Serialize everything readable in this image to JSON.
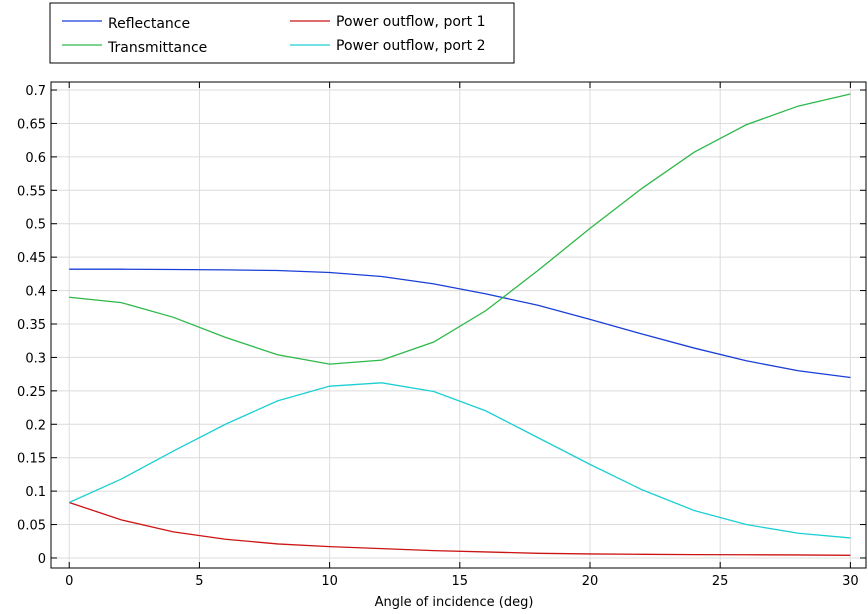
{
  "chart_data": {
    "type": "line",
    "title": "",
    "xlabel": "Angle of incidence (deg)",
    "ylabel": "",
    "xlim": [
      -0.7,
      30.6
    ],
    "ylim": [
      -0.015,
      0.712
    ],
    "xticks": [
      0,
      5,
      10,
      15,
      20,
      25,
      30
    ],
    "yticks": [
      0,
      0.05,
      0.1,
      0.15,
      0.2,
      0.25,
      0.3,
      0.35,
      0.4,
      0.45,
      0.5,
      0.55,
      0.6,
      0.65,
      0.7
    ],
    "grid": true,
    "legend_placement": "top-left, above plot, two columns",
    "x": [
      0,
      2,
      4,
      6,
      8,
      10,
      12,
      14,
      16,
      18,
      20,
      22,
      24,
      26,
      28,
      30
    ],
    "series": [
      {
        "name": "Reflectance",
        "color": "#1a3fd6",
        "values": [
          0.432,
          0.432,
          0.4315,
          0.431,
          0.43,
          0.427,
          0.421,
          0.41,
          0.395,
          0.378,
          0.357,
          0.335,
          0.314,
          0.295,
          0.28,
          0.27
        ]
      },
      {
        "name": "Transmittance",
        "color": "#2db84a",
        "values": [
          0.39,
          0.382,
          0.36,
          0.33,
          0.304,
          0.29,
          0.296,
          0.323,
          0.37,
          0.43,
          0.493,
          0.553,
          0.607,
          0.648,
          0.676,
          0.694
        ]
      },
      {
        "name": "Power outflow, port 1",
        "color": "#cc1414",
        "values": [
          0.083,
          0.057,
          0.039,
          0.028,
          0.021,
          0.017,
          0.014,
          0.011,
          0.009,
          0.007,
          0.006,
          0.0055,
          0.005,
          0.0048,
          0.0045,
          0.004
        ]
      },
      {
        "name": "Power outflow, port 2",
        "color": "#1ccfd2",
        "values": [
          0.083,
          0.118,
          0.16,
          0.2,
          0.235,
          0.257,
          0.262,
          0.249,
          0.22,
          0.18,
          0.14,
          0.102,
          0.071,
          0.05,
          0.037,
          0.03
        ]
      }
    ],
    "xtick_labels": [
      "0",
      "5",
      "10",
      "15",
      "20",
      "25",
      "30"
    ],
    "ytick_labels": [
      "0",
      "0.05",
      "0.1",
      "0.15",
      "0.2",
      "0.25",
      "0.3",
      "0.35",
      "0.4",
      "0.45",
      "0.5",
      "0.55",
      "0.6",
      "0.65",
      "0.7"
    ]
  }
}
